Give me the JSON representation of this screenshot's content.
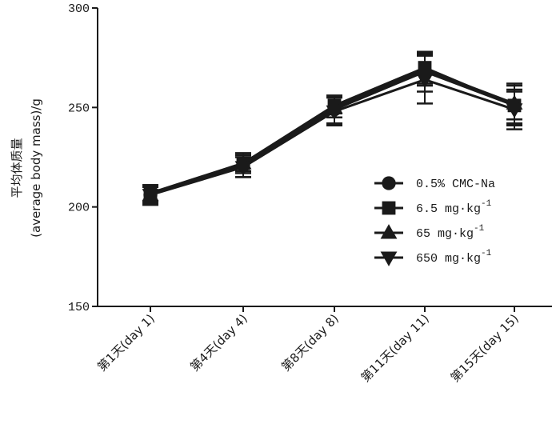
{
  "chart_data": {
    "type": "line",
    "title": "",
    "ylabel_line1": "平均体质量",
    "ylabel_line2": "(average body mass)/g",
    "xlabel": "",
    "ylim": [
      150,
      300
    ],
    "yticks": [
      150,
      200,
      250,
      300
    ],
    "ytick_labels": [
      "150",
      "200",
      "250",
      "300"
    ],
    "categories": [
      "第1天(day 1)",
      "第4天(day 4)",
      "第8天(day 8)",
      "第11天(day 11)",
      "第15天(day 15)"
    ],
    "series": [
      {
        "name": "0.5% CMC-Na",
        "label_main": "0.5% CMC-Na",
        "label_sup": "",
        "marker": "circle",
        "values": [
          206,
          221,
          249,
          268,
          251
        ],
        "errors": [
          5,
          6,
          7,
          10,
          10
        ]
      },
      {
        "name": "6.5 mg·kg⁻¹",
        "label_main": "6.5 mg·kg",
        "label_sup": "-1",
        "marker": "square",
        "values": [
          207,
          222,
          251,
          270,
          251
        ],
        "errors": [
          4,
          5,
          4,
          8,
          7
        ]
      },
      {
        "name": "65 mg·kg⁻¹",
        "label_main": "65 mg·kg",
        "label_sup": "-1",
        "marker": "triangle-up",
        "values": [
          206,
          222,
          250,
          269,
          252
        ],
        "errors": [
          4,
          4,
          5,
          8,
          10
        ]
      },
      {
        "name": "650 mg·kg⁻¹",
        "label_main": "650 mg·kg",
        "label_sup": "-1",
        "marker": "triangle-down",
        "values": [
          206,
          220,
          248,
          264,
          249
        ],
        "errors": [
          4,
          5,
          7,
          12,
          10
        ]
      }
    ],
    "legend_position": "right-middle",
    "grid": false,
    "color": "#1a1a1a"
  }
}
